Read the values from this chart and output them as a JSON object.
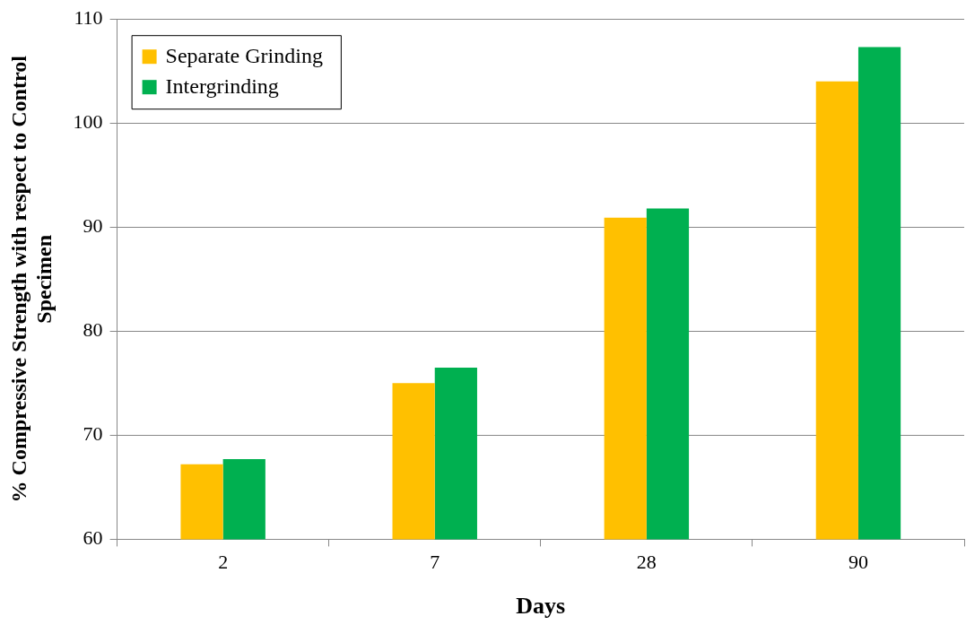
{
  "chart_data": {
    "type": "bar",
    "xlabel": "Days",
    "ylabel": "% Compressive Strength with respect to Control Specimen",
    "categories": [
      "2",
      "7",
      "28",
      "90"
    ],
    "series": [
      {
        "name": "Separate Grinding",
        "color": "#ffc000",
        "values": [
          67.2,
          75.0,
          90.9,
          104.0
        ]
      },
      {
        "name": "Intergrinding",
        "color": "#00b050",
        "values": [
          67.7,
          76.5,
          91.8,
          107.3
        ]
      }
    ],
    "ylim": [
      60,
      110
    ],
    "yticks": [
      60,
      70,
      80,
      90,
      100,
      110
    ],
    "grid": "y",
    "legend": "top left"
  }
}
